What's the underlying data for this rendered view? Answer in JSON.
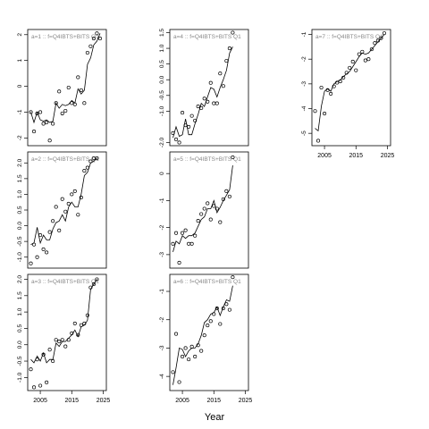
{
  "figure": {
    "xlabel": "Year"
  },
  "chart_data": [
    {
      "type": "line",
      "label": "a=1  ::  f=Q4IBTS+BITS Q1",
      "xlim": [
        2001,
        2026
      ],
      "ylim": [
        -2.3,
        2.2
      ],
      "yticks": [
        -2,
        -1,
        0,
        1,
        2
      ],
      "ytick_labels": [
        "-2",
        "-1",
        "0",
        "1",
        "2"
      ],
      "xticks": [],
      "xtick_labels": [],
      "points": [
        [
          2002,
          -1.0
        ],
        [
          2003,
          -1.75
        ],
        [
          2004,
          -1.05
        ],
        [
          2005,
          -1.0
        ],
        [
          2006,
          -1.45
        ],
        [
          2007,
          -1.4
        ],
        [
          2008,
          -2.1
        ],
        [
          2009,
          -1.45
        ],
        [
          2010,
          -0.65
        ],
        [
          2011,
          -0.2
        ],
        [
          2012,
          -1.05
        ],
        [
          2013,
          -0.95
        ],
        [
          2014,
          -0.05
        ],
        [
          2015,
          -0.65
        ],
        [
          2016,
          -0.7
        ],
        [
          2017,
          0.35
        ],
        [
          2018,
          -0.15
        ],
        [
          2019,
          -0.65
        ],
        [
          2020,
          1.3
        ],
        [
          2021,
          1.55
        ],
        [
          2022,
          1.85
        ],
        [
          2023,
          2.05
        ],
        [
          2024,
          1.85
        ]
      ],
      "line": [
        [
          2002,
          -1.0
        ],
        [
          2003,
          -1.4
        ],
        [
          2004,
          -1.0
        ],
        [
          2005,
          -1.3
        ],
        [
          2006,
          -1.35
        ],
        [
          2007,
          -1.3
        ],
        [
          2008,
          -1.4
        ],
        [
          2009,
          -1.35
        ],
        [
          2010,
          -0.65
        ],
        [
          2011,
          -0.85
        ],
        [
          2012,
          -0.7
        ],
        [
          2013,
          -0.75
        ],
        [
          2014,
          -0.7
        ],
        [
          2015,
          -0.55
        ],
        [
          2016,
          -0.65
        ],
        [
          2017,
          -0.1
        ],
        [
          2018,
          -0.3
        ],
        [
          2019,
          -0.15
        ],
        [
          2020,
          0.85
        ],
        [
          2021,
          1.1
        ],
        [
          2022,
          1.6
        ],
        [
          2023,
          1.75
        ],
        [
          2024,
          2.05
        ]
      ]
    },
    {
      "type": "line",
      "label": "a=2  ::  f=Q4IBTS+BITS Q1",
      "xlim": [
        2001,
        2026
      ],
      "ylim": [
        -1.35,
        2.35
      ],
      "yticks": [
        -1.0,
        -0.5,
        0.0,
        0.5,
        1.0,
        1.5,
        2.0
      ],
      "ytick_labels": [
        "-1.0",
        "-0.5",
        "0.0",
        "0.5",
        "1.0",
        "1.5",
        "2.0"
      ],
      "xticks": [],
      "xtick_labels": [],
      "points": [
        [
          2002,
          -1.2
        ],
        [
          2003,
          -0.6
        ],
        [
          2004,
          -1.0
        ],
        [
          2005,
          -0.3
        ],
        [
          2006,
          -0.75
        ],
        [
          2007,
          -0.85
        ],
        [
          2008,
          -0.2
        ],
        [
          2009,
          0.15
        ],
        [
          2010,
          0.6
        ],
        [
          2011,
          -0.15
        ],
        [
          2012,
          0.85
        ],
        [
          2013,
          0.45
        ],
        [
          2014,
          0.7
        ],
        [
          2015,
          1.0
        ],
        [
          2016,
          1.1
        ],
        [
          2017,
          0.35
        ],
        [
          2018,
          0.9
        ],
        [
          2019,
          1.75
        ],
        [
          2020,
          1.85
        ],
        [
          2021,
          2.05
        ],
        [
          2022,
          2.15
        ],
        [
          2023,
          2.15
        ]
      ],
      "line": [
        [
          2002,
          -0.6
        ],
        [
          2003,
          -0.55
        ],
        [
          2004,
          -0.05
        ],
        [
          2005,
          -0.55
        ],
        [
          2006,
          -0.3
        ],
        [
          2007,
          -0.45
        ],
        [
          2008,
          -0.45
        ],
        [
          2009,
          -0.1
        ],
        [
          2010,
          0.1
        ],
        [
          2011,
          0.15
        ],
        [
          2012,
          0.35
        ],
        [
          2013,
          0.15
        ],
        [
          2014,
          0.6
        ],
        [
          2015,
          0.75
        ],
        [
          2016,
          0.6
        ],
        [
          2017,
          0.6
        ],
        [
          2018,
          1.0
        ],
        [
          2019,
          1.6
        ],
        [
          2020,
          1.7
        ],
        [
          2021,
          2.0
        ],
        [
          2022,
          2.05
        ],
        [
          2023,
          2.15
        ]
      ]
    },
    {
      "type": "line",
      "label": "a=3  ::  f=Q4IBTS+BITS Q1",
      "xlim": [
        2001,
        2026
      ],
      "ylim": [
        -1.4,
        2.15
      ],
      "yticks": [
        -1.0,
        -0.5,
        0.0,
        0.5,
        1.0,
        1.5,
        2.0
      ],
      "ytick_labels": [
        "-1.0",
        "-0.5",
        "0.0",
        "0.5",
        "1.0",
        "1.5",
        "2.0"
      ],
      "xticks": [
        2005,
        2015,
        2025
      ],
      "xtick_labels": [
        "2005",
        "2015",
        "2025"
      ],
      "points": [
        [
          2002,
          -0.75
        ],
        [
          2003,
          -1.3
        ],
        [
          2004,
          -0.45
        ],
        [
          2005,
          -1.25
        ],
        [
          2006,
          -0.3
        ],
        [
          2007,
          -1.15
        ],
        [
          2008,
          -0.15
        ],
        [
          2009,
          -0.5
        ],
        [
          2010,
          0.15
        ],
        [
          2011,
          0.1
        ],
        [
          2012,
          0.15
        ],
        [
          2013,
          -0.05
        ],
        [
          2014,
          0.15
        ],
        [
          2015,
          0.35
        ],
        [
          2016,
          0.65
        ],
        [
          2017,
          0.3
        ],
        [
          2018,
          0.6
        ],
        [
          2019,
          0.65
        ],
        [
          2020,
          0.9
        ],
        [
          2021,
          1.75
        ],
        [
          2022,
          1.85
        ],
        [
          2023,
          2.0
        ]
      ],
      "line": [
        [
          2002,
          -0.45
        ],
        [
          2003,
          -0.55
        ],
        [
          2004,
          -0.35
        ],
        [
          2005,
          -0.5
        ],
        [
          2006,
          -0.25
        ],
        [
          2007,
          -0.55
        ],
        [
          2008,
          -0.45
        ],
        [
          2009,
          -0.45
        ],
        [
          2010,
          0.05
        ],
        [
          2011,
          -0.05
        ],
        [
          2012,
          0.1
        ],
        [
          2013,
          0.1
        ],
        [
          2014,
          0.2
        ],
        [
          2015,
          0.3
        ],
        [
          2016,
          0.45
        ],
        [
          2017,
          0.25
        ],
        [
          2018,
          0.55
        ],
        [
          2019,
          0.6
        ],
        [
          2020,
          0.75
        ],
        [
          2021,
          1.7
        ],
        [
          2022,
          1.85
        ],
        [
          2023,
          2.0
        ]
      ]
    },
    {
      "type": "line",
      "label": "a=4  ::  f=Q4IBTS+BITS Q1",
      "xlim": [
        2001,
        2026
      ],
      "ylim": [
        -2.1,
        1.6
      ],
      "yticks": [
        -2.0,
        -1.0,
        -0.5,
        0.0,
        0.5,
        1.0,
        1.5
      ],
      "ytick_labels": [
        "-2.0",
        "-1.0",
        "-0.5",
        "0.0",
        "0.5",
        "1.0",
        "1.5"
      ],
      "xticks": [],
      "xtick_labels": [],
      "points": [
        [
          2002,
          -1.7
        ],
        [
          2003,
          -1.9
        ],
        [
          2004,
          -2.0
        ],
        [
          2005,
          -1.05
        ],
        [
          2006,
          -1.45
        ],
        [
          2007,
          -1.5
        ],
        [
          2008,
          -1.15
        ],
        [
          2009,
          -1.3
        ],
        [
          2010,
          -0.85
        ],
        [
          2011,
          -0.9
        ],
        [
          2012,
          -0.6
        ],
        [
          2013,
          -0.7
        ],
        [
          2014,
          -0.1
        ],
        [
          2015,
          -0.75
        ],
        [
          2016,
          -0.75
        ],
        [
          2017,
          0.2
        ],
        [
          2018,
          -0.2
        ],
        [
          2019,
          0.6
        ],
        [
          2020,
          1.0
        ],
        [
          2021,
          1.5
        ]
      ],
      "line": [
        [
          2002,
          -1.85
        ],
        [
          2003,
          -1.5
        ],
        [
          2004,
          -1.8
        ],
        [
          2005,
          -1.75
        ],
        [
          2006,
          -1.25
        ],
        [
          2007,
          -1.75
        ],
        [
          2008,
          -1.75
        ],
        [
          2009,
          -1.4
        ],
        [
          2010,
          -1.1
        ],
        [
          2011,
          -0.75
        ],
        [
          2012,
          -0.85
        ],
        [
          2013,
          -0.55
        ],
        [
          2014,
          -0.25
        ],
        [
          2015,
          -0.3
        ],
        [
          2016,
          -0.55
        ],
        [
          2017,
          -0.25
        ],
        [
          2018,
          0.0
        ],
        [
          2019,
          0.3
        ],
        [
          2020,
          0.85
        ],
        [
          2021,
          1.05
        ]
      ]
    },
    {
      "type": "line",
      "label": "a=5  ::  f=Q4IBTS+BITS Q1",
      "xlim": [
        2001,
        2026
      ],
      "ylim": [
        -3.5,
        0.8
      ],
      "yticks": [
        -3,
        -2,
        -1,
        0
      ],
      "ytick_labels": [
        "-3",
        "-2",
        "-1",
        "0"
      ],
      "xticks": [],
      "xtick_labels": [],
      "points": [
        [
          2002,
          -2.6
        ],
        [
          2003,
          -2.2
        ],
        [
          2004,
          -3.3
        ],
        [
          2005,
          -2.2
        ],
        [
          2006,
          -2.1
        ],
        [
          2007,
          -2.6
        ],
        [
          2008,
          -2.6
        ],
        [
          2009,
          -2.3
        ],
        [
          2010,
          -1.75
        ],
        [
          2011,
          -1.5
        ],
        [
          2012,
          -1.3
        ],
        [
          2013,
          -1.1
        ],
        [
          2014,
          -1.7
        ],
        [
          2015,
          -1.2
        ],
        [
          2016,
          -1.3
        ],
        [
          2017,
          -1.8
        ],
        [
          2018,
          -0.95
        ],
        [
          2019,
          -0.65
        ],
        [
          2020,
          -0.85
        ],
        [
          2021,
          0.6
        ]
      ],
      "line": [
        [
          2002,
          -2.9
        ],
        [
          2003,
          -2.5
        ],
        [
          2004,
          -2.6
        ],
        [
          2005,
          -2.3
        ],
        [
          2006,
          -2.4
        ],
        [
          2007,
          -2.3
        ],
        [
          2008,
          -2.3
        ],
        [
          2009,
          -2.2
        ],
        [
          2010,
          -1.95
        ],
        [
          2011,
          -1.7
        ],
        [
          2012,
          -1.6
        ],
        [
          2013,
          -1.3
        ],
        [
          2014,
          -1.3
        ],
        [
          2015,
          -1.0
        ],
        [
          2016,
          -1.45
        ],
        [
          2017,
          -1.25
        ],
        [
          2018,
          -1.0
        ],
        [
          2019,
          -0.8
        ],
        [
          2020,
          -0.6
        ],
        [
          2021,
          0.3
        ]
      ]
    },
    {
      "type": "line",
      "label": "a=6  ::  f=Q4IBTS+BITS Q1",
      "xlim": [
        2001,
        2026
      ],
      "ylim": [
        -4.5,
        -0.4
      ],
      "yticks": [
        -4,
        -3,
        -2,
        -1
      ],
      "ytick_labels": [
        "-4",
        "-3",
        "-2",
        "-1"
      ],
      "xticks": [
        2005,
        2015,
        2025
      ],
      "xtick_labels": [
        "2005",
        "2015",
        "2025"
      ],
      "points": [
        [
          2002,
          -3.85
        ],
        [
          2003,
          -2.5
        ],
        [
          2004,
          -4.2
        ],
        [
          2005,
          -3.3
        ],
        [
          2006,
          -3.0
        ],
        [
          2007,
          -3.4
        ],
        [
          2008,
          -2.95
        ],
        [
          2009,
          -3.3
        ],
        [
          2010,
          -2.9
        ],
        [
          2011,
          -3.1
        ],
        [
          2012,
          -2.55
        ],
        [
          2013,
          -2.2
        ],
        [
          2014,
          -2.05
        ],
        [
          2015,
          -1.8
        ],
        [
          2016,
          -1.6
        ],
        [
          2017,
          -2.15
        ],
        [
          2018,
          -1.6
        ],
        [
          2019,
          -1.45
        ],
        [
          2020,
          -1.65
        ],
        [
          2021,
          -0.5
        ]
      ],
      "line": [
        [
          2002,
          -4.3
        ],
        [
          2003,
          -3.7
        ],
        [
          2004,
          -3.0
        ],
        [
          2005,
          -3.05
        ],
        [
          2006,
          -3.3
        ],
        [
          2007,
          -3.1
        ],
        [
          2008,
          -3.0
        ],
        [
          2009,
          -3.0
        ],
        [
          2010,
          -2.85
        ],
        [
          2011,
          -2.55
        ],
        [
          2012,
          -2.1
        ],
        [
          2013,
          -2.0
        ],
        [
          2014,
          -1.8
        ],
        [
          2015,
          -1.75
        ],
        [
          2016,
          -1.55
        ],
        [
          2017,
          -1.85
        ],
        [
          2018,
          -1.55
        ],
        [
          2019,
          -1.3
        ],
        [
          2020,
          -1.35
        ],
        [
          2021,
          -0.8
        ]
      ]
    },
    {
      "type": "line",
      "label": "a=7  ::  f=Q4IBTS+BITS Q1",
      "xlim": [
        2001,
        2026
      ],
      "ylim": [
        -5.5,
        -0.8
      ],
      "yticks": [
        -5,
        -4,
        -3,
        -2,
        -1
      ],
      "ytick_labels": [
        "-5",
        "-4",
        "-3",
        "-2",
        "-1"
      ],
      "xticks": [
        2005,
        2015,
        2025
      ],
      "xtick_labels": [
        "2005",
        "2015",
        "2025"
      ],
      "points": [
        [
          2002,
          -4.1
        ],
        [
          2003,
          -5.3
        ],
        [
          2004,
          -3.15
        ],
        [
          2005,
          -4.2
        ],
        [
          2006,
          -3.25
        ],
        [
          2007,
          -3.4
        ],
        [
          2008,
          -3.1
        ],
        [
          2009,
          -2.95
        ],
        [
          2010,
          -2.9
        ],
        [
          2011,
          -2.75
        ],
        [
          2012,
          -2.55
        ],
        [
          2013,
          -2.35
        ],
        [
          2014,
          -2.1
        ],
        [
          2015,
          -2.45
        ],
        [
          2016,
          -1.8
        ],
        [
          2017,
          -1.7
        ],
        [
          2018,
          -2.05
        ],
        [
          2019,
          -2.0
        ],
        [
          2020,
          -1.6
        ],
        [
          2021,
          -1.35
        ],
        [
          2022,
          -1.25
        ],
        [
          2023,
          -1.15
        ],
        [
          2024,
          -0.95
        ]
      ],
      "line": [
        [
          2002,
          -4.8
        ],
        [
          2003,
          -4.9
        ],
        [
          2004,
          -3.9
        ],
        [
          2005,
          -3.3
        ],
        [
          2006,
          -3.2
        ],
        [
          2007,
          -3.3
        ],
        [
          2008,
          -3.0
        ],
        [
          2009,
          -2.9
        ],
        [
          2010,
          -2.85
        ],
        [
          2011,
          -2.7
        ],
        [
          2012,
          -2.6
        ],
        [
          2013,
          -2.5
        ],
        [
          2014,
          -2.3
        ],
        [
          2015,
          -2.1
        ],
        [
          2016,
          -1.9
        ],
        [
          2017,
          -1.75
        ],
        [
          2018,
          -1.8
        ],
        [
          2019,
          -1.75
        ],
        [
          2020,
          -1.6
        ],
        [
          2021,
          -1.45
        ],
        [
          2022,
          -1.3
        ],
        [
          2023,
          -1.15
        ],
        [
          2024,
          -1.0
        ]
      ]
    }
  ]
}
